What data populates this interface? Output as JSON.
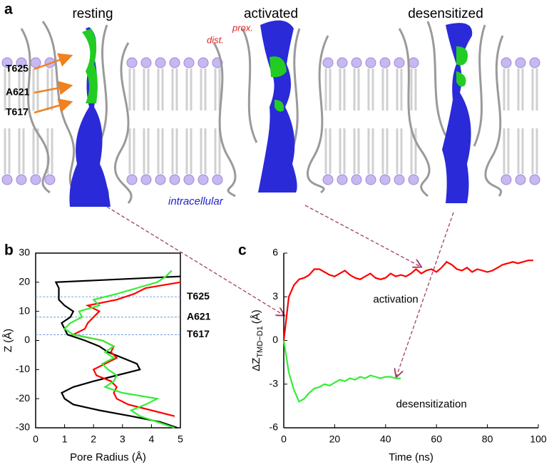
{
  "panel_labels": [
    "a",
    "b",
    "c"
  ],
  "panel_a": {
    "states": [
      "resting",
      "activated",
      "desensitized"
    ],
    "residues": [
      "T625",
      "A621",
      "T617"
    ],
    "dist": "dist.",
    "prox": "prox.",
    "intracellular": "intracellular"
  },
  "chart_data": [
    {
      "type": "line",
      "orientation": "vertical",
      "frame": true,
      "x_label": "Pore Radius (Å)",
      "y_label": "Z (Å)",
      "xlim": [
        0,
        5
      ],
      "xticks": [
        0,
        1,
        2,
        3,
        4,
        5
      ],
      "ylim": [
        -30,
        30
      ],
      "yticks": [
        -30,
        -20,
        -10,
        0,
        10,
        20,
        30
      ],
      "y": [
        -30,
        -28,
        -26,
        -24,
        -22,
        -20,
        -18,
        -16,
        -14,
        -12,
        -10,
        -8,
        -6,
        -4,
        -2,
        0,
        2,
        4,
        6,
        8,
        10,
        12,
        14,
        16,
        18,
        20,
        22,
        24
      ],
      "series": [
        {
          "color": "#000000",
          "values": [
            4.9,
            4.3,
            3.3,
            2.2,
            1.3,
            1.0,
            0.9,
            1.3,
            2.0,
            2.8,
            3.6,
            3.5,
            3.0,
            2.5,
            2.2,
            1.7,
            1.1,
            1.0,
            0.9,
            1.2,
            1.3,
            1.0,
            0.8,
            0.8,
            0.8,
            0.7,
            5.0,
            null
          ]
        },
        {
          "color": "#ff0000",
          "values": [
            null,
            null,
            4.8,
            4.0,
            3.2,
            2.8,
            2.7,
            2.8,
            2.6,
            2.1,
            2.0,
            2.4,
            2.8,
            2.6,
            2.7,
            2.3,
            1.3,
            1.7,
            1.8,
            2.0,
            2.2,
            1.8,
            2.8,
            3.4,
            3.8,
            5.0,
            null,
            null
          ]
        },
        {
          "color": "#33ee33",
          "values": [
            4.8,
            4.2,
            3.6,
            3.3,
            3.8,
            4.2,
            3.0,
            2.4,
            2.7,
            2.8,
            2.5,
            2.3,
            2.7,
            2.4,
            2.7,
            2.3,
            1.3,
            1.0,
            1.2,
            1.6,
            1.5,
            2.2,
            2.0,
            2.8,
            3.5,
            4.2,
            4.5,
            4.7
          ]
        }
      ],
      "annotations": [
        {
          "text": "T625",
          "y": 15
        },
        {
          "text": "A621",
          "y": 8
        },
        {
          "text": "T617",
          "y": 2
        }
      ]
    },
    {
      "type": "line",
      "orientation": "horizontal",
      "frame": false,
      "x_label": "Time (ns)",
      "y_label": "ΔZ",
      "y_label_sub": "TMD−D1",
      "y_label_unit": "(Å)",
      "xlim": [
        0,
        100
      ],
      "xticks": [
        0,
        20,
        40,
        60,
        80,
        100
      ],
      "ylim": [
        -6,
        6
      ],
      "yticks": [
        -6,
        -3,
        0,
        3,
        6
      ],
      "x": [
        0,
        2,
        4,
        6,
        8,
        10,
        12,
        14,
        16,
        18,
        20,
        22,
        24,
        26,
        28,
        30,
        32,
        34,
        36,
        38,
        40,
        42,
        44,
        46,
        48,
        50,
        52,
        54,
        56,
        58,
        60,
        62,
        64,
        66,
        68,
        70,
        72,
        74,
        76,
        78,
        80,
        82,
        84,
        86,
        88,
        90,
        92,
        94,
        96,
        98
      ],
      "series": [
        {
          "name": "activation",
          "color": "#ff0000",
          "values": [
            0,
            3.0,
            3.8,
            4.2,
            4.3,
            4.5,
            4.9,
            4.9,
            4.7,
            4.5,
            4.4,
            4.6,
            4.8,
            4.5,
            4.3,
            4.2,
            4.4,
            4.6,
            4.3,
            4.2,
            4.3,
            4.6,
            4.4,
            4.5,
            4.4,
            4.6,
            4.9,
            4.6,
            4.8,
            4.9,
            4.7,
            5.0,
            5.4,
            5.2,
            4.9,
            4.8,
            5.0,
            4.7,
            4.9,
            4.8,
            4.7,
            4.8,
            5.0,
            5.2,
            5.3,
            5.4,
            5.3,
            5.4,
            5.5,
            5.5
          ]
        },
        {
          "name": "desensitization",
          "color": "#33ee33",
          "values": [
            0,
            -2.2,
            -3.4,
            -4.2,
            -4.0,
            -3.6,
            -3.3,
            -3.2,
            -3.0,
            -3.1,
            -2.9,
            -2.7,
            -2.8,
            -2.6,
            -2.7,
            -2.5,
            -2.6,
            -2.4,
            -2.5,
            -2.6,
            -2.5,
            -2.5,
            -2.6,
            -2.6,
            null,
            null,
            null,
            null,
            null,
            null,
            null,
            null,
            null,
            null,
            null,
            null,
            null,
            null,
            null,
            null,
            null,
            null,
            null,
            null,
            null,
            null,
            null,
            null,
            null,
            null
          ]
        }
      ]
    }
  ]
}
